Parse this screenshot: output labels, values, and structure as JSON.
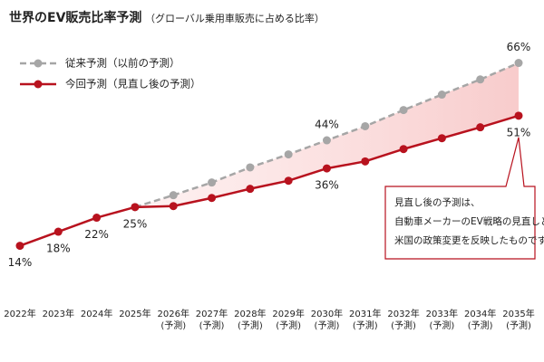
{
  "chart_data": {
    "type": "line",
    "title": "世界のEV販売比率予測",
    "subtitle": "（グローバル乗用車販売に占める比率）",
    "categories": [
      "2022年",
      "2023年",
      "2024年",
      "2025年",
      "2026年",
      "2027年",
      "2028年",
      "2029年",
      "2030年",
      "2031年",
      "2032年",
      "2033年",
      "2034年",
      "2035年"
    ],
    "category_sublabels": [
      null,
      null,
      null,
      null,
      "(予測)",
      "(予測)",
      "(予測)",
      "(予測)",
      "(予測)",
      "(予測)",
      "(予測)",
      "(予測)",
      "(予測)",
      "(予測)"
    ],
    "series": [
      {
        "name": "従来予測（以前の予測）",
        "color": "#a6a6a6",
        "dashed": true,
        "values": [
          null,
          null,
          null,
          25,
          28.4,
          32,
          36.3,
          40,
          44,
          48,
          52.6,
          57,
          61.3,
          66
        ],
        "value_labels": [
          null,
          null,
          null,
          null,
          null,
          null,
          null,
          null,
          "44%",
          null,
          null,
          null,
          null,
          "66%"
        ]
      },
      {
        "name": "今回予測（見直し後の予測）",
        "color": "#b8121e",
        "dashed": false,
        "values": [
          14,
          18,
          22,
          25,
          25.3,
          27.6,
          30.2,
          32.5,
          36,
          38,
          41.5,
          44.6,
          47.7,
          51
        ],
        "value_labels": [
          "14%",
          "18%",
          "22%",
          "25%",
          null,
          null,
          null,
          null,
          "36%",
          null,
          null,
          null,
          null,
          "51%"
        ]
      }
    ],
    "ylim": [
      0,
      70
    ],
    "fill_between": true,
    "annotation": {
      "lines": [
        "見直し後の予測は、",
        "自動車メーカーのEV戦略の見直しと",
        "米国の政策変更を反映したものです。"
      ]
    }
  }
}
